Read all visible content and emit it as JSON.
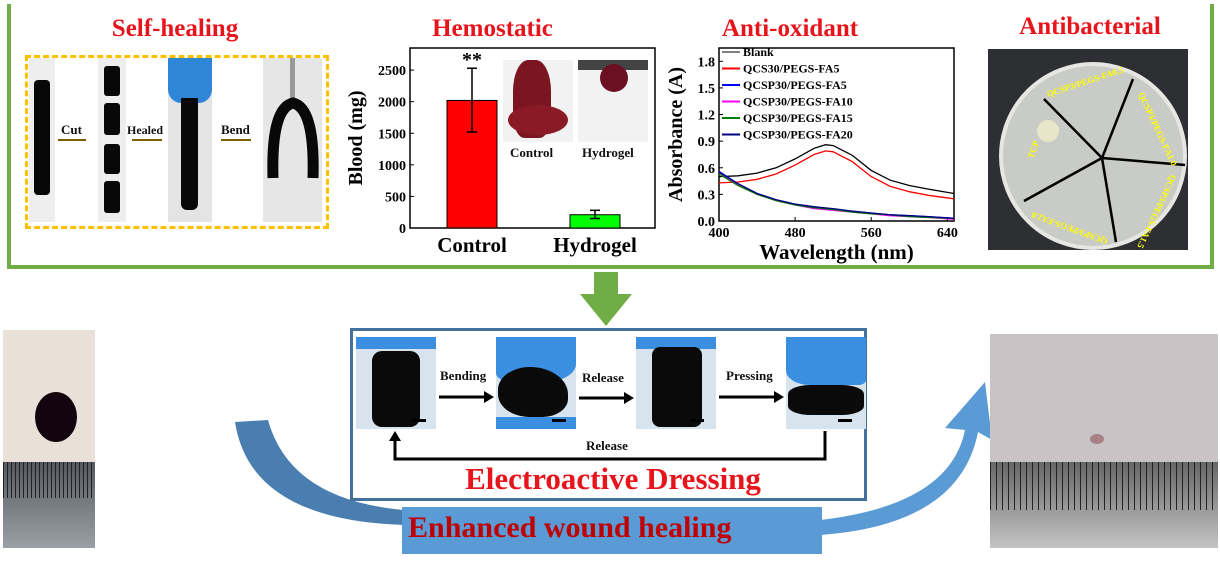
{
  "panels": {
    "self_healing": {
      "title": "Self-healing",
      "steps": [
        "Cut",
        "Healed",
        "Bend"
      ]
    },
    "hemostatic": {
      "title": "Hemostatic",
      "inset_labels": [
        "Control",
        "Hydrogel"
      ],
      "significance": "**"
    },
    "antioxidant": {
      "title": "Anti-oxidant"
    },
    "antibacterial": {
      "title": "Antibacterial",
      "plate_labels": [
        "QCSP3/PEGS-FA0.5",
        "QCSP3/PEGS-FA1.0",
        "QCSP3/PEGS-FA1.5",
        "QCSP3/PEGS-FA2.0",
        "TCP"
      ]
    }
  },
  "dressing": {
    "title": "Electroactive Dressing",
    "steps": [
      "Bending",
      "Release",
      "Pressing"
    ],
    "return_label": "Release"
  },
  "banner": {
    "label": "Enhanced wound healing"
  },
  "colors": {
    "title_red": "#e8141c",
    "frame_green": "#70ad47",
    "box_blue": "#41719c",
    "banner_blue": "#5b9bd5",
    "dash_orange": "#ffc000"
  },
  "chart_data": [
    {
      "type": "bar",
      "categories": [
        "Control",
        "Hydrogel"
      ],
      "values": [
        2020,
        210
      ],
      "errors": [
        [
          1520,
          2530
        ],
        [
          150,
          280
        ]
      ],
      "colors": [
        "#ff0000",
        "#00ff00"
      ],
      "ylabel": "Blood (mg)",
      "yticks": [
        0,
        500,
        1000,
        1500,
        2000,
        2500
      ],
      "ylim": [
        0,
        2850
      ],
      "annotation": "**"
    },
    {
      "type": "line",
      "xlabel": "Wavelength (nm)",
      "ylabel": "Absorbance (A)",
      "xlim": [
        400,
        647
      ],
      "ylim": [
        0,
        1.95
      ],
      "xticks": [
        400,
        480,
        560,
        640
      ],
      "yticks": [
        "0.0",
        "0.3",
        "0.6",
        "0.9",
        "1.2",
        "1.5",
        "1.8"
      ],
      "legend": "top-right",
      "series": [
        {
          "name": "Blank",
          "color": "#000000",
          "x": [
            400,
            420,
            440,
            460,
            480,
            500,
            512,
            520,
            540,
            560,
            580,
            600,
            620,
            647
          ],
          "y": [
            0.5,
            0.51,
            0.54,
            0.6,
            0.7,
            0.82,
            0.86,
            0.85,
            0.74,
            0.57,
            0.46,
            0.4,
            0.36,
            0.31
          ]
        },
        {
          "name": "QCS30/PEGS-FA5",
          "color": "#ff0000",
          "x": [
            400,
            420,
            440,
            460,
            480,
            500,
            512,
            520,
            540,
            560,
            580,
            600,
            620,
            647
          ],
          "y": [
            0.43,
            0.44,
            0.47,
            0.53,
            0.63,
            0.75,
            0.79,
            0.78,
            0.67,
            0.5,
            0.39,
            0.33,
            0.29,
            0.25
          ]
        },
        {
          "name": "QCSP30/PEGS-FA5",
          "color": "#0000ff",
          "x": [
            400,
            420,
            440,
            460,
            480,
            500,
            520,
            540,
            560,
            580,
            600,
            620,
            647
          ],
          "y": [
            0.56,
            0.42,
            0.31,
            0.24,
            0.19,
            0.16,
            0.13,
            0.11,
            0.09,
            0.07,
            0.06,
            0.05,
            0.03
          ]
        },
        {
          "name": "QCSP30/PEGS-FA10",
          "color": "#ff00ff",
          "x": [
            400,
            420,
            440,
            460,
            480,
            500,
            520,
            540,
            560,
            580,
            600,
            620,
            647
          ],
          "y": [
            0.55,
            0.41,
            0.3,
            0.23,
            0.18,
            0.14,
            0.12,
            0.1,
            0.08,
            0.06,
            0.05,
            0.04,
            0.02
          ]
        },
        {
          "name": "QCSP30/PEGS-FA15",
          "color": "#008000",
          "x": [
            400,
            420,
            440,
            460,
            480,
            500,
            520,
            540,
            560,
            580,
            600,
            620,
            647
          ],
          "y": [
            0.53,
            0.4,
            0.3,
            0.23,
            0.18,
            0.15,
            0.13,
            0.1,
            0.08,
            0.07,
            0.05,
            0.04,
            0.03
          ]
        },
        {
          "name": "QCSP30/PEGS-FA20",
          "color": "#000080",
          "x": [
            400,
            420,
            440,
            460,
            480,
            500,
            520,
            540,
            560,
            580,
            600,
            620,
            647
          ],
          "y": [
            0.55,
            0.42,
            0.31,
            0.24,
            0.19,
            0.16,
            0.14,
            0.11,
            0.09,
            0.07,
            0.06,
            0.05,
            0.03
          ]
        }
      ]
    }
  ]
}
